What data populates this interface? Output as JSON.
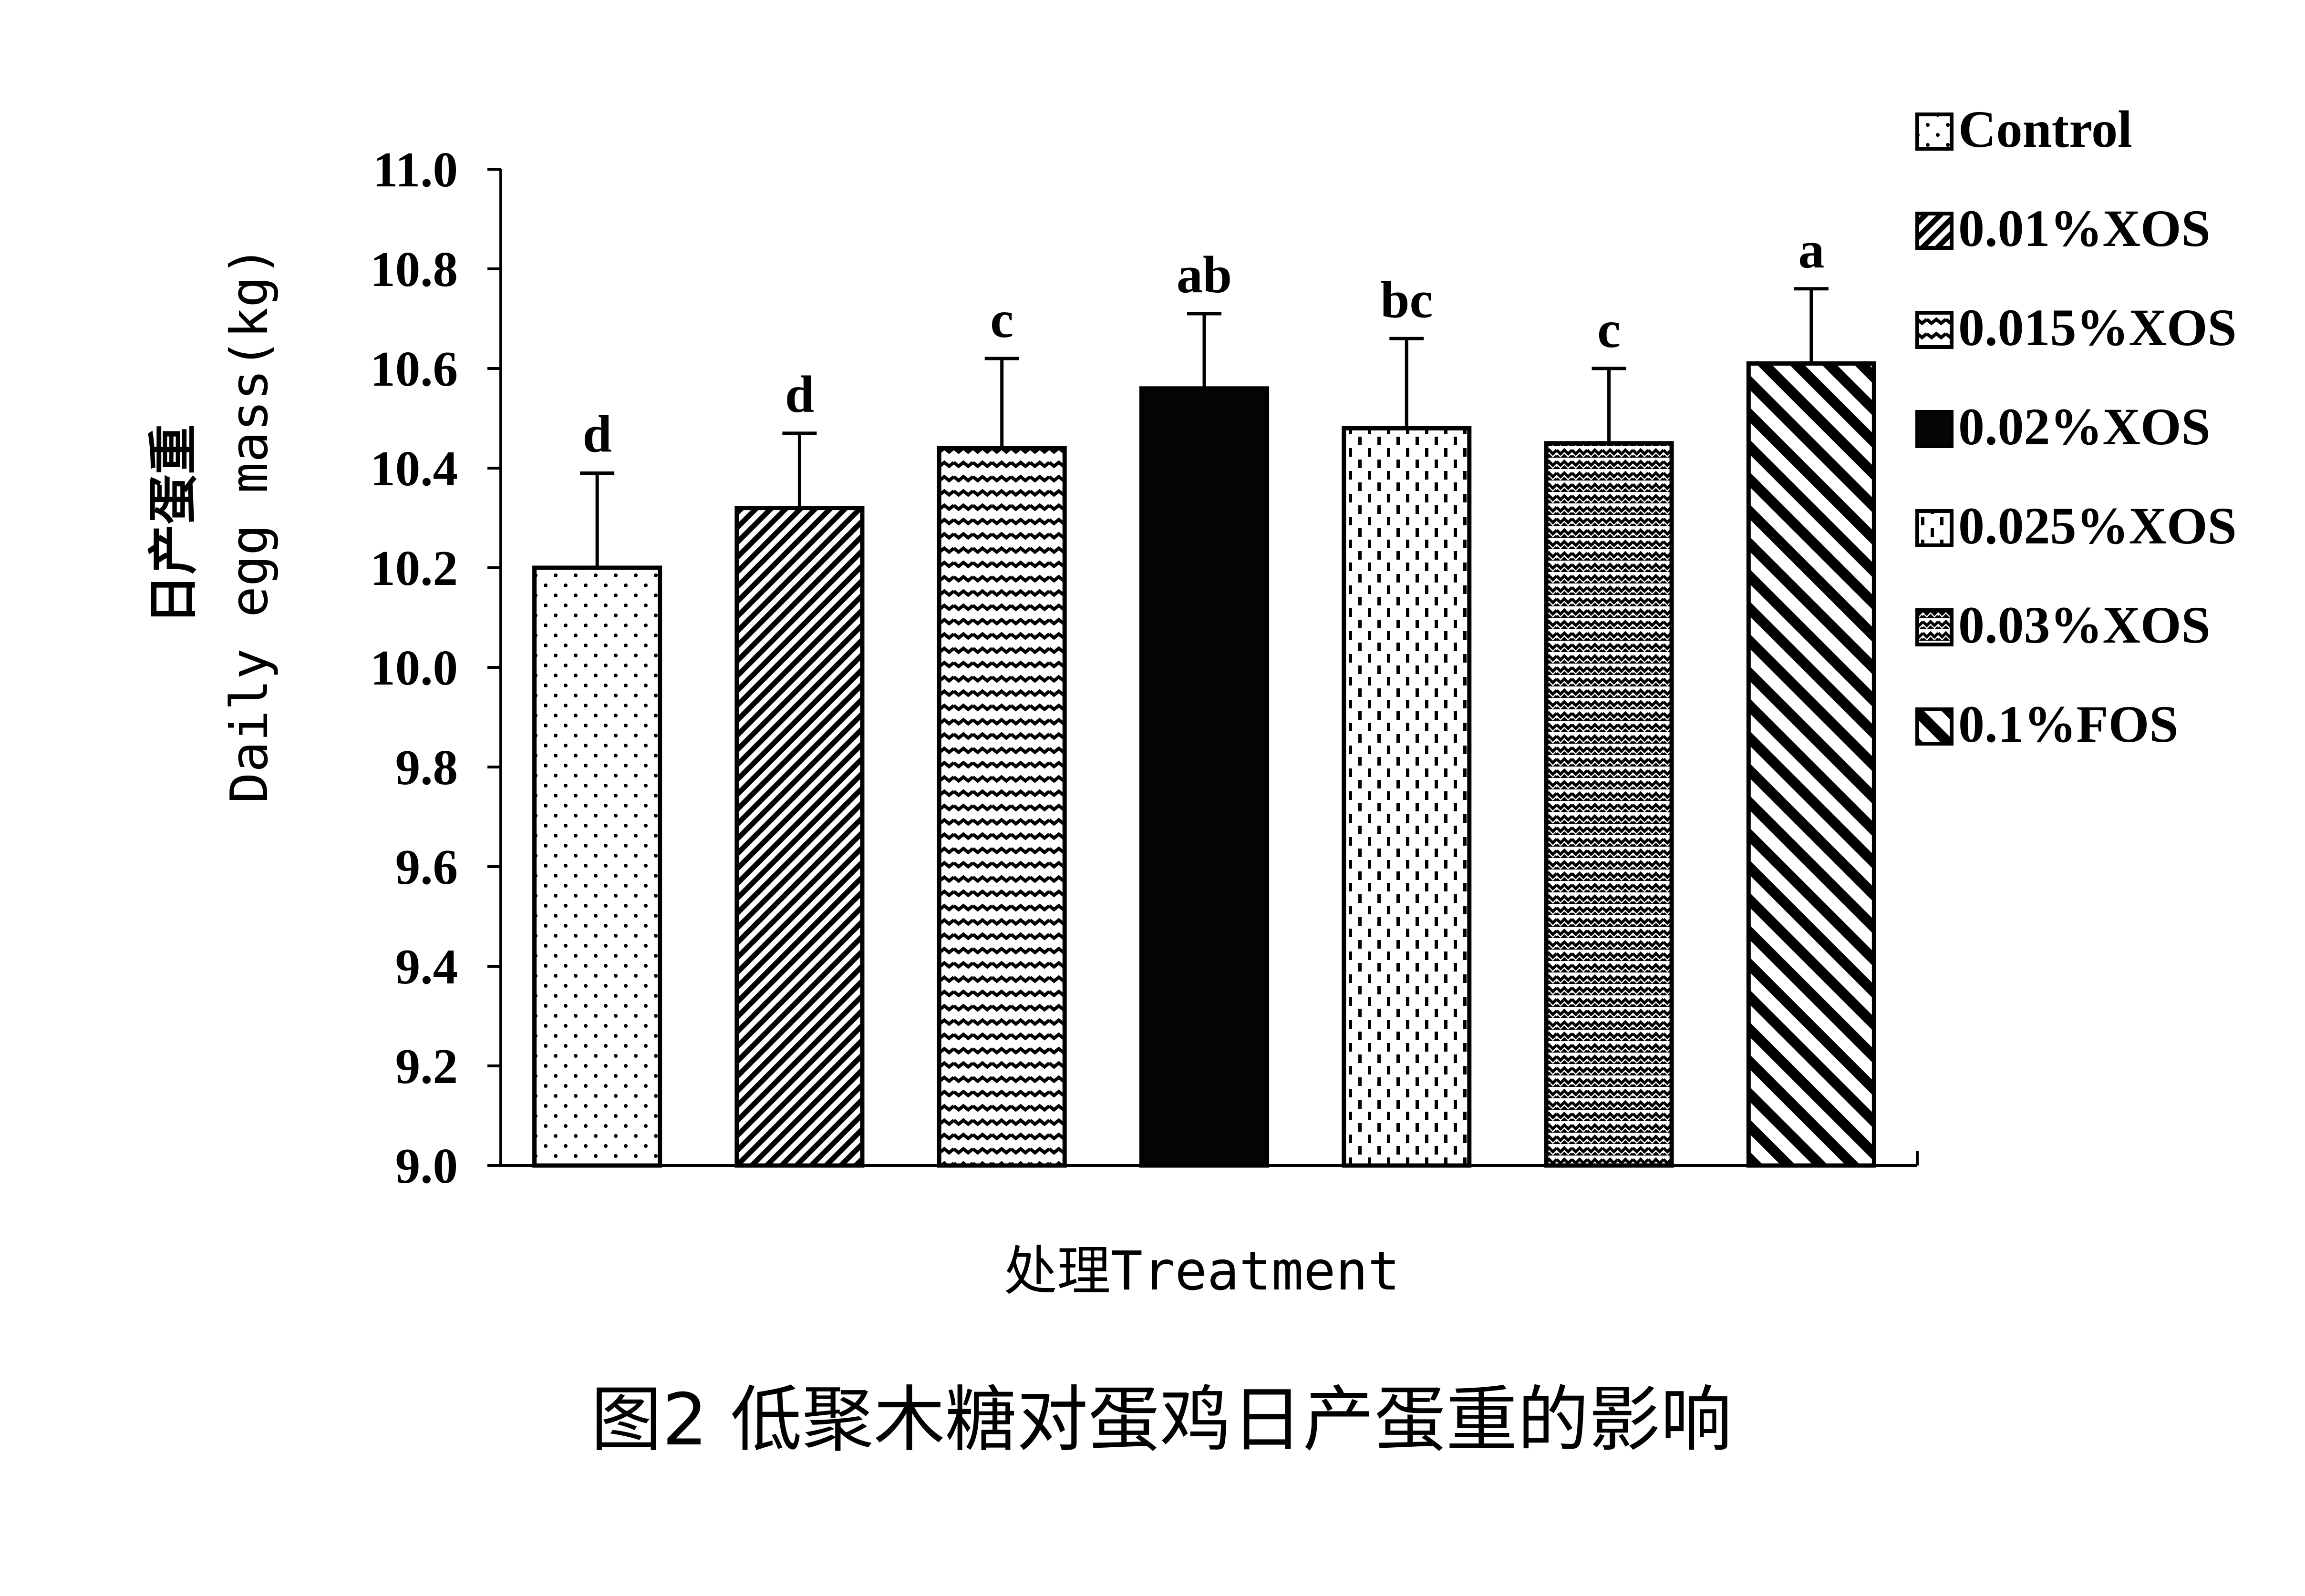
{
  "chart_data": {
    "type": "bar",
    "categories": [
      "Control",
      "0.01%XOS",
      "0.015%XOS",
      "0.02%XOS",
      "0.025%XOS",
      "0.03%XOS",
      "0.1%FOS"
    ],
    "values": [
      10.2,
      10.32,
      10.44,
      10.56,
      10.48,
      10.45,
      10.61
    ],
    "errors": [
      0.19,
      0.15,
      0.18,
      0.15,
      0.18,
      0.15,
      0.15
    ],
    "significance": [
      "d",
      "d",
      "c",
      "ab",
      "bc",
      "c",
      "a"
    ],
    "ylim": [
      9.0,
      11.0
    ],
    "yticks": [
      "9.0",
      "9.2",
      "9.4",
      "9.6",
      "9.8",
      "10.0",
      "10.2",
      "10.4",
      "10.6",
      "10.8",
      "11.0"
    ],
    "ylabel_cn": "日产蛋重",
    "ylabel_en": "Daily egg mass(kg)",
    "xlabel": "处理Treatment",
    "legend_position": "right",
    "patterns": [
      "dots",
      "diag-dense",
      "horizontal-wave",
      "solid",
      "vertical-dash",
      "zigzag",
      "diag-wide"
    ]
  },
  "caption": "图2 低聚木糖对蛋鸡日产蛋重的影响"
}
